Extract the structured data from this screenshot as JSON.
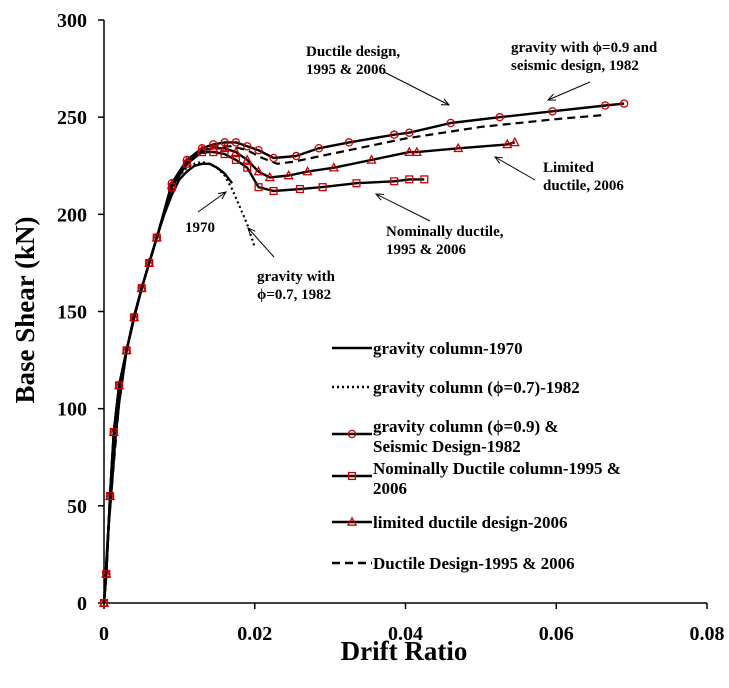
{
  "chart_data": {
    "type": "line",
    "xlabel": "Drift Ratio",
    "ylabel": "Base Shear (kN)",
    "xlim": [
      0,
      0.08
    ],
    "ylim": [
      0,
      300
    ],
    "x_ticks": [
      "0",
      "0.02",
      "0.04",
      "0.06",
      "0.08"
    ],
    "y_ticks": [
      "0",
      "50",
      "100",
      "150",
      "200",
      "250",
      "300"
    ],
    "grid": false,
    "legend_position": "lower-right",
    "series": [
      {
        "name": "gravity column-1970",
        "style": "solid",
        "marker": "none",
        "marker_color": "#000000",
        "x": [
          0,
          0.0005,
          0.001,
          0.0015,
          0.002,
          0.003,
          0.004,
          0.005,
          0.006,
          0.007,
          0.008,
          0.009,
          0.01,
          0.011,
          0.012,
          0.013,
          0.014,
          0.015,
          0.016,
          0.017
        ],
        "y": [
          0,
          34,
          58,
          84,
          103,
          130,
          148,
          162,
          175,
          188,
          200,
          210,
          218,
          222,
          225,
          226,
          226,
          224,
          221,
          216
        ]
      },
      {
        "name": "gravity column (ϕ=0.7)-1982",
        "style": "dotted",
        "marker": "none",
        "marker_color": "#000000",
        "x": [
          0,
          0.0005,
          0.001,
          0.0015,
          0.002,
          0.003,
          0.004,
          0.005,
          0.006,
          0.007,
          0.008,
          0.009,
          0.01,
          0.011,
          0.012,
          0.013,
          0.014,
          0.015,
          0.016,
          0.017,
          0.018,
          0.019,
          0.02
        ],
        "y": [
          0,
          34,
          58,
          84,
          103,
          130,
          148,
          162,
          175,
          188,
          201,
          212,
          220,
          224,
          226,
          227,
          226,
          224,
          220,
          213,
          204,
          195,
          183
        ]
      },
      {
        "name": "gravity column (ϕ=0.9) & Seismic Design-1982",
        "style": "solid",
        "marker": "circle",
        "marker_color": "#cc0000",
        "x": [
          0,
          0.0003,
          0.0008,
          0.0013,
          0.002,
          0.003,
          0.004,
          0.005,
          0.006,
          0.007,
          0.009,
          0.011,
          0.013,
          0.0145,
          0.016,
          0.0175,
          0.019,
          0.0205,
          0.0225,
          0.0255,
          0.0285,
          0.0325,
          0.0385,
          0.0405,
          0.046,
          0.0525,
          0.0595,
          0.0665,
          0.069
        ],
        "y": [
          0,
          15,
          55,
          88,
          112,
          130,
          147,
          162,
          175,
          188,
          216,
          228,
          234,
          236,
          237,
          237,
          235,
          233,
          229,
          230,
          234,
          237,
          241,
          242,
          247,
          250,
          253,
          256,
          257
        ]
      },
      {
        "name": "Nominally Ductile column-1995 & 2006",
        "style": "solid",
        "marker": "square",
        "marker_color": "#cc0000",
        "x": [
          0,
          0.0003,
          0.0008,
          0.0013,
          0.002,
          0.003,
          0.004,
          0.005,
          0.006,
          0.007,
          0.009,
          0.011,
          0.013,
          0.0145,
          0.016,
          0.0175,
          0.019,
          0.0205,
          0.0225,
          0.026,
          0.029,
          0.0335,
          0.0385,
          0.0405,
          0.0425
        ],
        "y": [
          0,
          15,
          55,
          88,
          112,
          130,
          147,
          162,
          175,
          188,
          214,
          226,
          232,
          232,
          231,
          228,
          224,
          214,
          212,
          213,
          214,
          216,
          217,
          218,
          218
        ]
      },
      {
        "name": "limited ductile design-2006",
        "style": "solid",
        "marker": "triangle",
        "marker_color": "#cc0000",
        "x": [
          0,
          0.0003,
          0.0008,
          0.0013,
          0.002,
          0.003,
          0.004,
          0.005,
          0.006,
          0.007,
          0.009,
          0.011,
          0.013,
          0.0145,
          0.016,
          0.0175,
          0.019,
          0.0205,
          0.022,
          0.0245,
          0.027,
          0.0305,
          0.0355,
          0.0405,
          0.0415,
          0.047,
          0.0535,
          0.0545
        ],
        "y": [
          0,
          15,
          55,
          88,
          112,
          130,
          147,
          162,
          175,
          188,
          215,
          227,
          233,
          234,
          234,
          232,
          228,
          222,
          219,
          220,
          222,
          224,
          228,
          232,
          232,
          234,
          236,
          237
        ]
      },
      {
        "name": "Ductile Design-1995 & 2006",
        "style": "dashed",
        "marker": "none",
        "marker_color": "#000000",
        "x": [
          0,
          0.0005,
          0.001,
          0.002,
          0.003,
          0.004,
          0.005,
          0.006,
          0.007,
          0.009,
          0.011,
          0.013,
          0.015,
          0.017,
          0.019,
          0.021,
          0.023,
          0.025,
          0.03,
          0.035,
          0.04,
          0.045,
          0.05,
          0.055,
          0.06,
          0.066
        ],
        "y": [
          0,
          34,
          58,
          103,
          130,
          148,
          162,
          175,
          188,
          215,
          227,
          233,
          235,
          235,
          233,
          229,
          226,
          227,
          231,
          235,
          239,
          242,
          245,
          247,
          249,
          251
        ]
      }
    ],
    "annotations": [
      {
        "lines": [
          "Ductile design,",
          "1995 & 2006"
        ]
      },
      {
        "lines": [
          "gravity with ϕ=0.9 and",
          "seismic design, 1982"
        ]
      },
      {
        "lines": [
          "Limited",
          "ductile, 2006"
        ]
      },
      {
        "lines": [
          "Nominally ductile,",
          "1995 & 2006"
        ]
      },
      {
        "lines": [
          "1970"
        ]
      },
      {
        "lines": [
          "gravity with",
          "ϕ=0.7, 1982"
        ]
      }
    ]
  }
}
